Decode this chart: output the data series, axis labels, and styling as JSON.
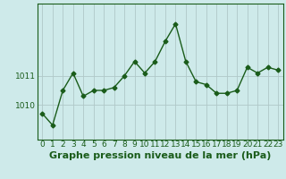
{
  "x": [
    0,
    1,
    2,
    3,
    4,
    5,
    6,
    7,
    8,
    9,
    10,
    11,
    12,
    13,
    14,
    15,
    16,
    17,
    18,
    19,
    20,
    21,
    22,
    23
  ],
  "y": [
    1009.7,
    1009.3,
    1010.5,
    1011.1,
    1010.3,
    1010.5,
    1010.5,
    1010.6,
    1011.0,
    1011.5,
    1011.1,
    1011.5,
    1012.2,
    1012.8,
    1011.5,
    1010.8,
    1010.7,
    1010.4,
    1010.4,
    1010.5,
    1011.3,
    1011.1,
    1011.3,
    1011.2
  ],
  "line_color": "#1a5c1a",
  "marker": "D",
  "marker_size": 2.5,
  "line_width": 1.0,
  "bg_color": "#ceeaea",
  "grid_color": "#b0c8c8",
  "xlabel": "Graphe pression niveau de la mer (hPa)",
  "xlabel_fontsize": 8,
  "xlabel_color": "#1a5c1a",
  "ytick_labels": [
    "1010",
    "1011"
  ],
  "ytick_values": [
    1010,
    1011
  ],
  "ylim": [
    1008.8,
    1013.5
  ],
  "xlim": [
    -0.5,
    23.5
  ],
  "tick_color": "#1a5c1a",
  "tick_fontsize": 6.5,
  "spine_color": "#1a5c1a"
}
